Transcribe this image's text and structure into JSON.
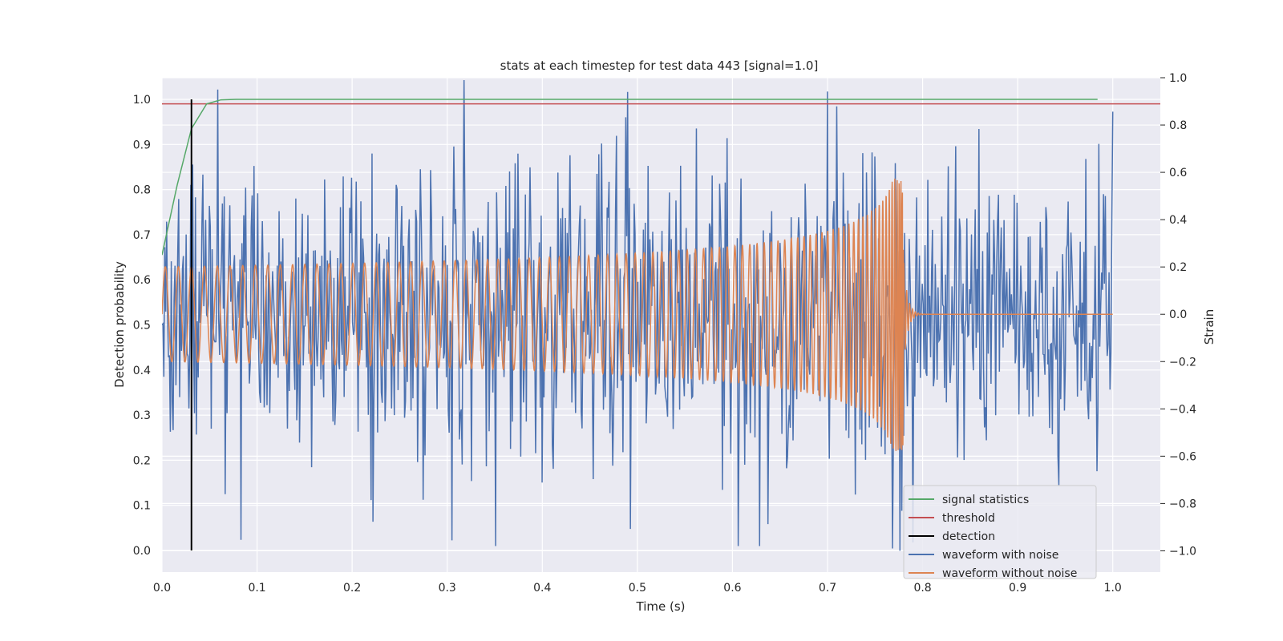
{
  "chart_data": {
    "type": "line",
    "title": "stats at each timestep for test data 443 [signal=1.0]",
    "xlabel": "Time (s)",
    "ylabel_left": "Detection probability",
    "ylabel_right": "Strain",
    "xlim": [
      0.0,
      1.05
    ],
    "ylim_left": [
      -0.048,
      1.048
    ],
    "ylim_right": [
      -1.09,
      1.0
    ],
    "xticks": [
      0.0,
      0.1,
      0.2,
      0.3,
      0.4,
      0.5,
      0.6,
      0.7,
      0.8,
      0.9,
      1.0
    ],
    "xtick_labels": [
      "0.0",
      "0.1",
      "0.2",
      "0.3",
      "0.4",
      "0.5",
      "0.6",
      "0.7",
      "0.8",
      "0.9",
      "1.0"
    ],
    "yticks_left": [
      0.0,
      0.1,
      0.2,
      0.3,
      0.4,
      0.5,
      0.6,
      0.7,
      0.8,
      0.9,
      1.0
    ],
    "ytick_labels_left": [
      "0.0",
      "0.1",
      "0.2",
      "0.3",
      "0.4",
      "0.5",
      "0.6",
      "0.7",
      "0.8",
      "0.9",
      "1.0"
    ],
    "yticks_right": [
      -1.0,
      -0.8,
      -0.6,
      -0.4,
      -0.2,
      0.0,
      0.2,
      0.4,
      0.6,
      0.8,
      1.0
    ],
    "ytick_labels_right": [
      "−1.0",
      "−0.8",
      "−0.6",
      "−0.4",
      "−0.2",
      "0.0",
      "0.2",
      "0.4",
      "0.6",
      "0.8",
      "1.0"
    ],
    "grid": true,
    "legend_position": "lower-right",
    "series": [
      {
        "name": "signal statistics",
        "axis": "left",
        "color": "#55a868",
        "x": [
          0.0,
          0.016,
          0.031,
          0.047,
          0.062,
          0.078,
          0.1,
          0.2,
          0.4,
          0.6,
          0.8,
          0.984
        ],
        "y": [
          0.655,
          0.81,
          0.935,
          0.99,
          0.999,
          1.0,
          1.0,
          1.0,
          1.0,
          1.0,
          1.0,
          1.0
        ]
      },
      {
        "name": "threshold",
        "axis": "left",
        "color": "#c44e52",
        "x": [
          0.0,
          1.05
        ],
        "y": [
          0.99,
          0.99
        ]
      },
      {
        "name": "detection",
        "axis": "left",
        "color": "#000000",
        "x": [
          0.031,
          0.031
        ],
        "y": [
          0.0,
          1.0
        ]
      },
      {
        "name": "waveform with noise",
        "axis": "right",
        "color": "#4c72b0",
        "x_range": [
          0.0,
          1.0
        ],
        "samples": 1024,
        "amplitude_std": 0.3,
        "y_highlights": [
          [
            0.318,
            0.99
          ],
          [
            0.49,
            0.94
          ],
          [
            0.351,
            -0.98
          ],
          [
            0.776,
            -1.0
          ],
          [
            0.768,
            -0.99
          ],
          [
            0.87,
            0.5
          ],
          [
            0.985,
            0.72
          ]
        ]
      },
      {
        "name": "waveform without noise",
        "axis": "right",
        "color": "#dd8452",
        "x_range": [
          0.0,
          1.0
        ],
        "base_amplitude": 0.2,
        "peak_amplitude": 0.58,
        "merger_time": 0.78,
        "start_frequency": 72,
        "post_merger": 0.0
      }
    ]
  }
}
